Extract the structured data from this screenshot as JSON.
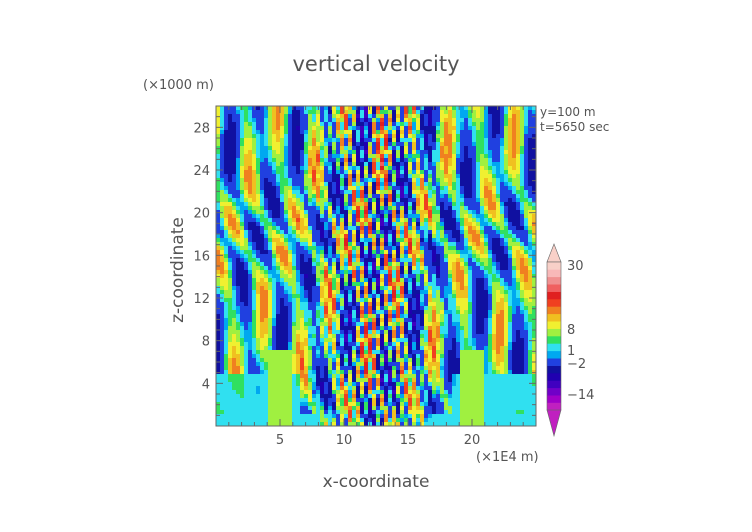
{
  "chart_data": {
    "type": "heatmap",
    "title": "vertical velocity",
    "xlabel": "x-coordinate",
    "ylabel": "z-coordinate",
    "x_unit": "(×1E4 m)",
    "y_unit": "(×1000 m)",
    "annotations": [
      "y=100 m",
      "t=5650 sec"
    ],
    "xlim": [
      0,
      25
    ],
    "ylim": [
      0,
      30
    ],
    "xticks": [
      5,
      10,
      15,
      20
    ],
    "yticks": [
      4,
      8,
      12,
      16,
      20,
      24,
      28
    ],
    "colorbar": {
      "levels": [
        -30,
        -26,
        -22,
        -18,
        -14,
        -10,
        -6,
        -2,
        -1,
        1,
        2,
        4,
        6,
        8,
        10,
        14,
        18,
        22,
        26,
        30
      ],
      "colors": [
        "#c020c0",
        "#a000c8",
        "#7000c8",
        "#4000c0",
        "#2000b0",
        "#1010a0",
        "#2040e0",
        "#00a8f0",
        "#30e0f0",
        "#30e060",
        "#a0f040",
        "#f0f030",
        "#f0c020",
        "#f08020",
        "#f04020",
        "#e02020",
        "#f06060",
        "#f09090",
        "#f8b8b8",
        "#f8d0c8"
      ],
      "tick_labels": [
        "30",
        "8",
        "1",
        "−2",
        "−14"
      ]
    }
  }
}
